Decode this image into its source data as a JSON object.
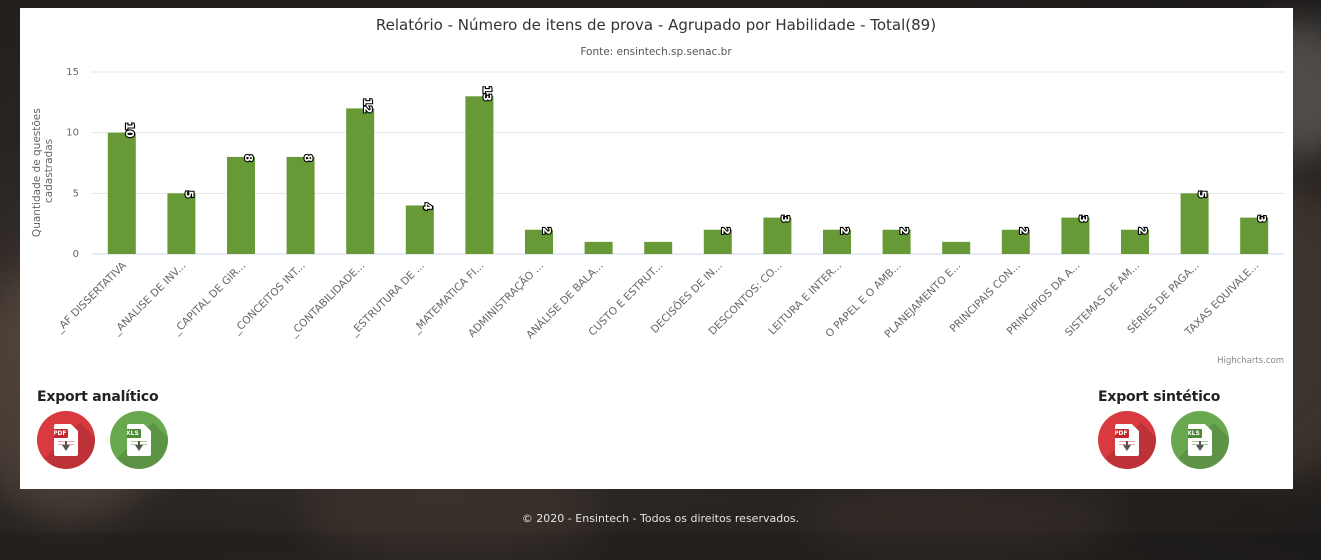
{
  "chart_data": {
    "type": "bar",
    "title": "Relatório - Número de itens de prova - Agrupado por Habilidade - Total(89)",
    "subtitle": "Fonte: ensintech.sp.senac.br",
    "xlabel": "",
    "ylabel": "Quantidade de questões cadastradas",
    "ylim": [
      0,
      15
    ],
    "yticks": [
      0,
      5,
      10,
      15
    ],
    "grid": true,
    "color": "#679a36",
    "credits": "Highcharts.com",
    "categories": [
      "_AF DISSERTATIVA",
      "_ANALISE DE INV...",
      "_CAPITAL DE GIR...",
      "_CONCEITOS INT...",
      "_CONTABILIDADE...",
      "_ESTRUTURA DE ...",
      "_MATEMATICA FI...",
      "ADMINISTRAÇÃO ...",
      "ANÁLISE DE BALA...",
      "CUSTO E ESTRUT...",
      "DECISÕES DE IN...",
      "DESCONTOS: CO...",
      "LEITURA E INTER...",
      "O PAPEL E O AMB...",
      "PLANEJAMENTO E...",
      "PRINCIPAIS CON...",
      "PRINCÍPIOS DA A...",
      "SISTEMAS DE AM...",
      "SÉRIES DE PAGA...",
      "TAXAS EQUIVALE..."
    ],
    "values": [
      10,
      5,
      8,
      8,
      12,
      4,
      13,
      2,
      1,
      1,
      2,
      3,
      2,
      2,
      1,
      2,
      3,
      2,
      5,
      3
    ],
    "data_labels": [
      "10",
      "5",
      "8",
      "8",
      "12",
      "4",
      "13",
      "2",
      "",
      "",
      "2",
      "3",
      "2",
      "2",
      "",
      "2",
      "3",
      "2",
      "5",
      "3"
    ]
  },
  "exports": {
    "analitico": {
      "title": "Export analítico",
      "pdf_label": "PDF",
      "xls_label": "XLS"
    },
    "sintetico": {
      "title": "Export sintético",
      "pdf_label": "PDF",
      "xls_label": "XLS"
    }
  },
  "footer": {
    "text": "© 2020 - Ensintech - Todos os direitos reservados."
  }
}
